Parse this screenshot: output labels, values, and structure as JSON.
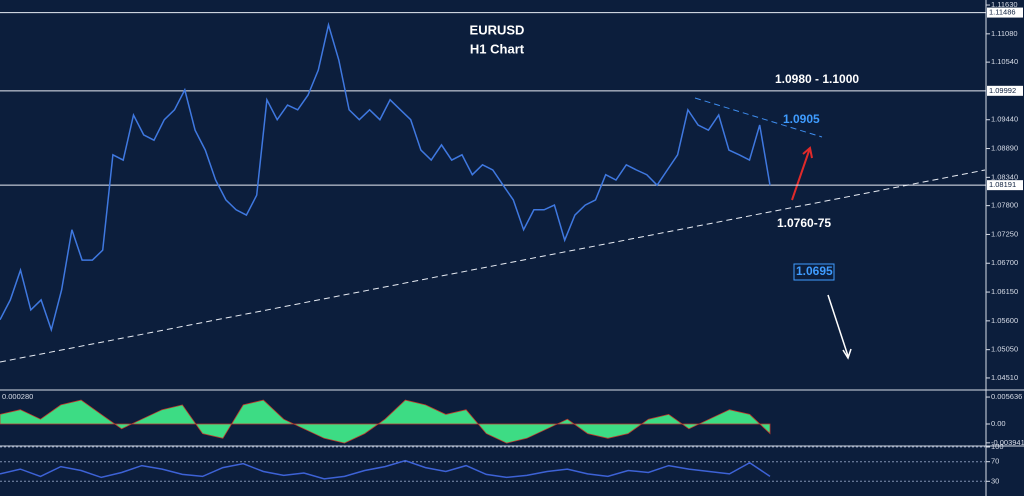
{
  "chart_data": [
    {
      "type": "line",
      "title": "EURUSD",
      "subtitle": "H1 Chart",
      "color": "#3f78e0",
      "values": [
        1.0562,
        1.06,
        1.0657,
        1.0581,
        1.06,
        1.0543,
        1.0619,
        1.0734,
        1.0676,
        1.0676,
        1.0695,
        1.0877,
        1.0867,
        1.0953,
        1.0915,
        1.0905,
        1.0944,
        1.0963,
        1.1001,
        1.0924,
        1.0886,
        1.0829,
        1.0791,
        1.0772,
        1.0762,
        1.08,
        1.0982,
        1.0944,
        1.0972,
        1.0963,
        1.0991,
        1.1039,
        1.1125,
        1.1058,
        1.0963,
        1.0944,
        1.0963,
        1.0944,
        1.0982,
        1.0963,
        1.0944,
        1.0886,
        1.0867,
        1.0896,
        1.0867,
        1.0877,
        1.0839,
        1.0858,
        1.0848,
        1.0819,
        1.0791,
        1.0734,
        1.0772,
        1.0772,
        1.0781,
        1.0714,
        1.0762,
        1.0781,
        1.0791,
        1.0839,
        1.0829,
        1.0858,
        1.0848,
        1.0839,
        1.0819,
        1.0848,
        1.0877,
        1.0963,
        1.0934,
        1.0924,
        1.0953,
        1.0886,
        1.0877,
        1.0867,
        1.0934,
        1.0819
      ],
      "ylim": [
        1.0428,
        1.11726
      ],
      "yticks": [
        {
          "value": 1.1163,
          "label": "1.11630"
        },
        {
          "value": 1.1108,
          "label": "1.11080"
        },
        {
          "value": 1.1054,
          "label": "1.10540"
        },
        {
          "value": 1.0944,
          "label": "1.09440"
        },
        {
          "value": 1.0889,
          "label": "1.08890"
        },
        {
          "value": 1.0834,
          "label": "1.08340"
        },
        {
          "value": 1.078,
          "label": "1.07800"
        },
        {
          "value": 1.0725,
          "label": "1.07250"
        },
        {
          "value": 1.067,
          "label": "1.06700"
        },
        {
          "value": 1.0615,
          "label": "1.06150"
        },
        {
          "value": 1.056,
          "label": "1.05600"
        },
        {
          "value": 1.0505,
          "label": "1.05050"
        },
        {
          "value": 1.0451,
          "label": "1.04510"
        }
      ],
      "levels": [
        {
          "value": 1.11486,
          "label": "1.11486"
        },
        {
          "value": 1.09992,
          "label": "1.09992"
        },
        {
          "value": 1.08191,
          "label": "1.08191"
        }
      ],
      "annotations": [
        "1.0980 - 1.1000",
        "1.0905",
        "1.0760-75",
        "1.0695"
      ]
    },
    {
      "type": "area",
      "color": "#3ddc84",
      "label": "0.000280",
      "values": [
        0.002,
        0.003,
        0.001,
        0.004,
        0.005,
        0.002,
        -0.001,
        0.001,
        0.003,
        0.004,
        -0.002,
        -0.003,
        0.004,
        0.005,
        0.001,
        -0.001,
        -0.003,
        -0.004,
        -0.002,
        0.001,
        0.005,
        0.004,
        0.002,
        0.003,
        -0.002,
        -0.004,
        -0.003,
        -0.001,
        0.001,
        -0.002,
        -0.003,
        -0.002,
        0.001,
        0.002,
        -0.001,
        0.001,
        0.003,
        0.002,
        -0.002
      ],
      "ylim": [
        -0.0046,
        0.0069
      ],
      "yticks": [
        0.005636,
        {
          "value": 0,
          "label": "0.00"
        },
        -0.003941
      ]
    },
    {
      "type": "line",
      "color": "#3d62d6",
      "values": [
        45,
        55,
        40,
        60,
        52,
        38,
        48,
        62,
        55,
        44,
        40,
        58,
        66,
        50,
        42,
        47,
        35,
        40,
        52,
        60,
        72,
        58,
        50,
        62,
        44,
        38,
        42,
        50,
        55,
        45,
        40,
        52,
        48,
        62,
        55,
        50,
        45,
        68,
        40
      ],
      "ylim": [
        0,
        100
      ],
      "yticks": [
        100,
        70,
        30
      ]
    }
  ]
}
